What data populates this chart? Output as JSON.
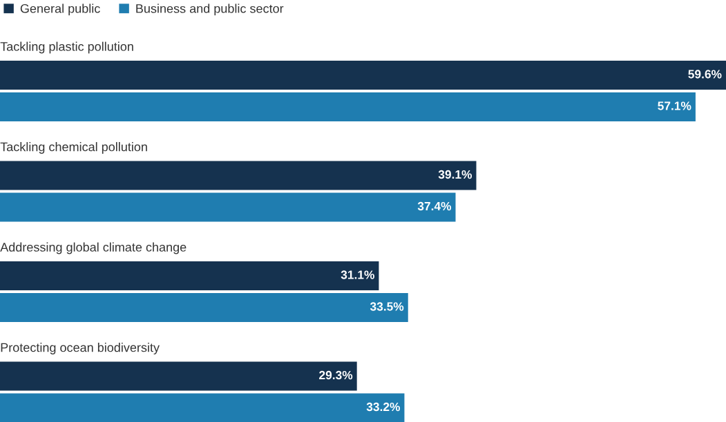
{
  "chart_data": {
    "type": "bar",
    "orientation": "horizontal",
    "categories": [
      "Tackling plastic pollution",
      "Tackling chemical pollution",
      "Addressing global climate change",
      "Protecting ocean biodiversity"
    ],
    "series": [
      {
        "name": "General public",
        "color": "#15324f",
        "values": [
          59.6,
          39.1,
          31.1,
          29.3
        ],
        "value_labels": [
          "59.6%",
          "39.1%",
          "31.1%",
          "29.3%"
        ]
      },
      {
        "name": "Business and public sector",
        "color": "#1f7db0",
        "values": [
          57.1,
          37.4,
          33.5,
          33.2
        ],
        "value_labels": [
          "57.1%",
          "37.4%",
          "33.5%",
          "33.2%"
        ]
      }
    ],
    "legend": "top left"
  }
}
